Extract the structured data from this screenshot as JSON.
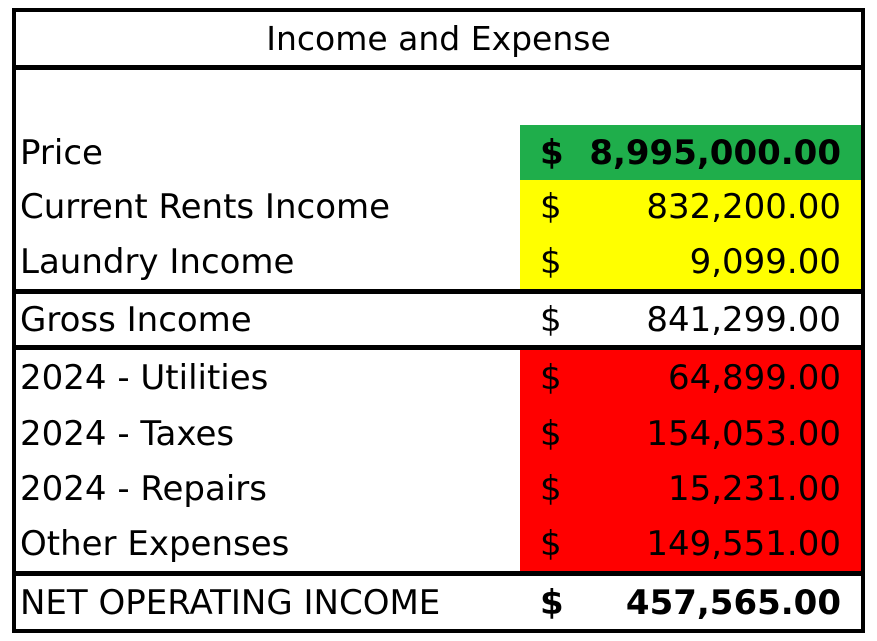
{
  "title": "Income and Expense",
  "colors": {
    "price_fill": "#1fae4b",
    "income_fill": "#ffff00",
    "expense_fill": "#ff0000",
    "border": "#000000"
  },
  "rows": {
    "price": {
      "label": "Price",
      "currency": "$",
      "amount": "8,995,000.00"
    },
    "current_rents": {
      "label": "Current Rents Income",
      "currency": "$",
      "amount": "832,200.00"
    },
    "laundry": {
      "label": "Laundry Income",
      "currency": "$",
      "amount": "9,099.00"
    },
    "gross": {
      "label": "Gross Income",
      "currency": "$",
      "amount": "841,299.00"
    },
    "utilities": {
      "label": "2024 - Utilities",
      "currency": "$",
      "amount": "64,899.00"
    },
    "taxes": {
      "label": "2024 - Taxes",
      "currency": "$",
      "amount": "154,053.00"
    },
    "repairs": {
      "label": "2024 - Repairs",
      "currency": "$",
      "amount": "15,231.00"
    },
    "other": {
      "label": "Other Expenses",
      "currency": "$",
      "amount": "149,551.00"
    },
    "noi": {
      "label": "NET OPERATING INCOME",
      "currency": "$",
      "amount": "457,565.00"
    }
  }
}
